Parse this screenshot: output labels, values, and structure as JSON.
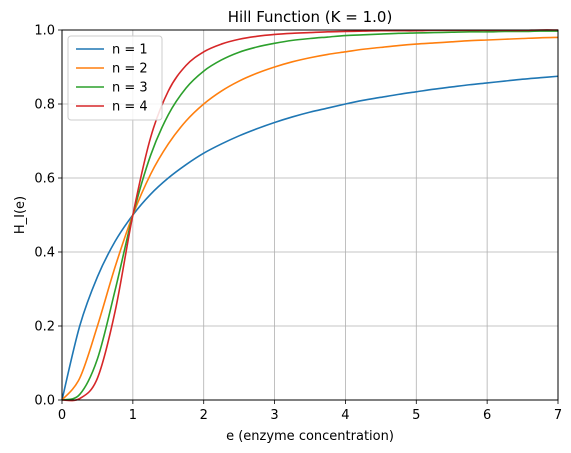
{
  "chart_data": {
    "type": "line",
    "title": "Hill Function (K = 1.0)",
    "xlabel": "e (enzyme concentration)",
    "ylabel": "H_I(e)",
    "xlim": [
      0,
      7
    ],
    "ylim": [
      0,
      1.0
    ],
    "xticks": [
      0,
      1,
      2,
      3,
      4,
      5,
      6,
      7
    ],
    "xtick_labels": [
      "0",
      "1",
      "2",
      "3",
      "4",
      "5",
      "6",
      "7"
    ],
    "yticks": [
      0.0,
      0.2,
      0.4,
      0.6,
      0.8,
      1.0
    ],
    "ytick_labels": [
      "0.0",
      "0.2",
      "0.4",
      "0.6",
      "0.8",
      "1.0"
    ],
    "grid": true,
    "legend_position": "top-left",
    "x": [
      0,
      0.25,
      0.5,
      0.75,
      1,
      1.25,
      1.5,
      1.75,
      2,
      2.25,
      2.5,
      2.75,
      3,
      3.25,
      3.5,
      3.75,
      4,
      4.25,
      4.5,
      4.75,
      5,
      5.25,
      5.5,
      5.75,
      6,
      6.25,
      6.5,
      6.75,
      7
    ],
    "series": [
      {
        "name": "n = 1",
        "color": "#1f77b4",
        "values": [
          0,
          0.2,
          0.333,
          0.429,
          0.5,
          0.556,
          0.6,
          0.636,
          0.667,
          0.692,
          0.714,
          0.733,
          0.75,
          0.765,
          0.778,
          0.789,
          0.8,
          0.81,
          0.818,
          0.826,
          0.833,
          0.84,
          0.846,
          0.852,
          0.857,
          0.862,
          0.867,
          0.871,
          0.875
        ]
      },
      {
        "name": "n = 2",
        "color": "#ff7f0e",
        "values": [
          0,
          0.059,
          0.2,
          0.36,
          0.5,
          0.61,
          0.692,
          0.754,
          0.8,
          0.835,
          0.862,
          0.883,
          0.9,
          0.914,
          0.925,
          0.934,
          0.941,
          0.948,
          0.953,
          0.958,
          0.962,
          0.965,
          0.968,
          0.971,
          0.973,
          0.975,
          0.977,
          0.979,
          0.98
        ]
      },
      {
        "name": "n = 3",
        "color": "#2ca02c",
        "values": [
          0,
          0.015,
          0.111,
          0.297,
          0.5,
          0.661,
          0.771,
          0.843,
          0.889,
          0.919,
          0.94,
          0.954,
          0.964,
          0.972,
          0.977,
          0.981,
          0.985,
          0.987,
          0.989,
          0.991,
          0.992,
          0.993,
          0.994,
          0.995,
          0.995,
          0.996,
          0.996,
          0.997,
          0.997
        ]
      },
      {
        "name": "n = 4",
        "color": "#d62728",
        "values": [
          0,
          0.004,
          0.059,
          0.24,
          0.5,
          0.709,
          0.835,
          0.904,
          0.941,
          0.962,
          0.975,
          0.983,
          0.988,
          0.991,
          0.993,
          0.995,
          0.996,
          0.997,
          0.998,
          0.998,
          0.998,
          0.999,
          0.999,
          0.999,
          0.999,
          0.999,
          0.999,
          1.0,
          1.0
        ]
      }
    ]
  }
}
